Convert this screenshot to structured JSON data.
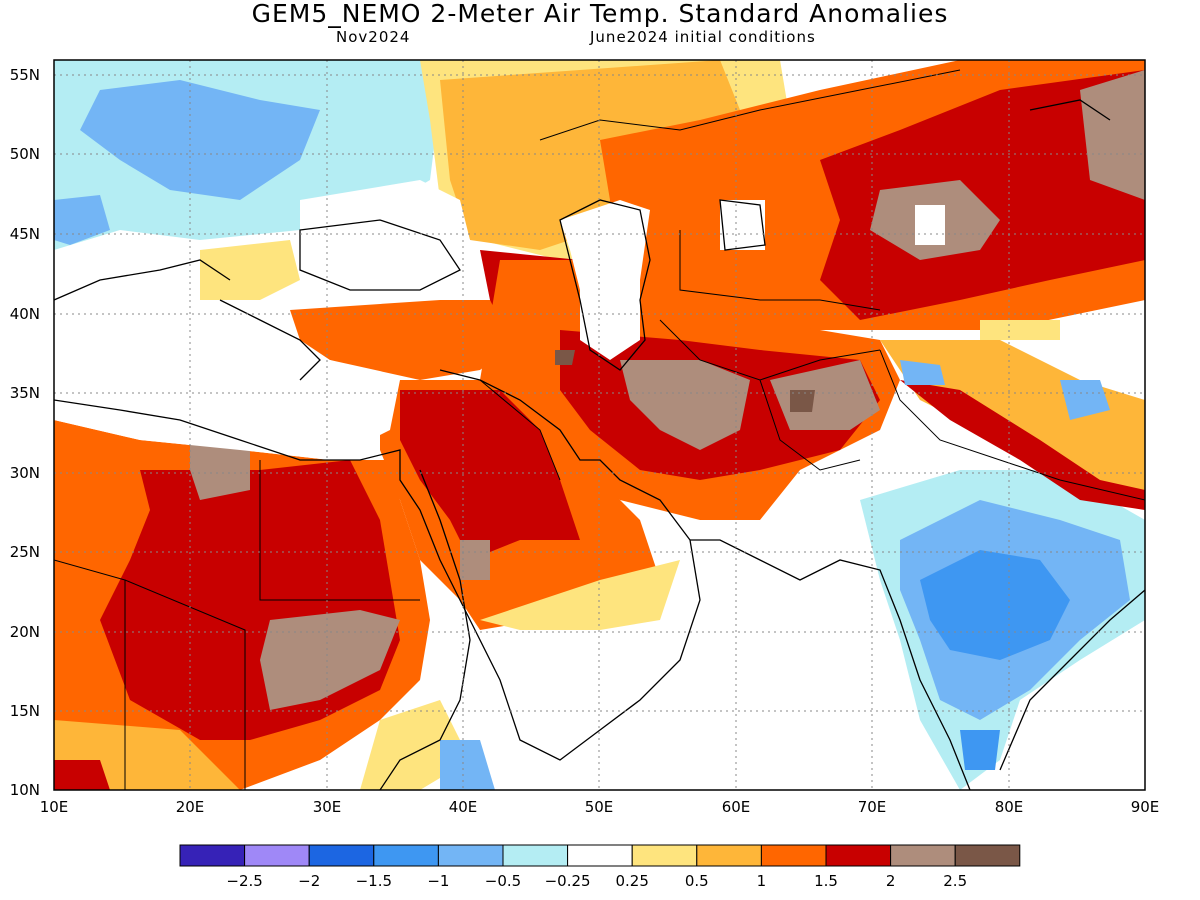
{
  "header": {
    "title": "GEM5_NEMO 2-Meter Air Temp. Standard Anomalies",
    "subtitle_left": "Nov2024",
    "subtitle_right": "June2024 initial conditions"
  },
  "map": {
    "lon_labels": [
      "10E",
      "20E",
      "30E",
      "40E",
      "50E",
      "60E",
      "70E",
      "80E",
      "90E"
    ],
    "lat_labels": [
      "55N",
      "50N",
      "45N",
      "40N",
      "35N",
      "30N",
      "25N",
      "20N",
      "15N",
      "10N"
    ],
    "extent": {
      "lon": [
        10,
        90
      ],
      "lat": [
        10,
        56
      ]
    },
    "regions": [
      {
        "name": "north-africa-west",
        "level": "1 to 1.5",
        "color": "#ff6600"
      },
      {
        "name": "sahara-core",
        "level": "1.5 to 2",
        "color": "#c80000"
      },
      {
        "name": "sudan-peak",
        "level": "2 to 2.5",
        "color": "#ae8d7c"
      },
      {
        "name": "arabia-north",
        "level": "1.5 to 2",
        "color": "#c80000"
      },
      {
        "name": "iran-plateau",
        "level": "2 to 2.5",
        "color": "#ae8d7c"
      },
      {
        "name": "central-asia",
        "level": "1 to 1.5",
        "color": "#ff6600"
      },
      {
        "name": "india-cold",
        "level": "-1.5 to -1",
        "color": "#3e97f2"
      },
      {
        "name": "europe-cold",
        "level": "-1 to -0.5",
        "color": "#73b5f5"
      }
    ]
  },
  "colorbar": {
    "colors": [
      "#3622b7",
      "#9f88f7",
      "#1c66e2",
      "#3e97f2",
      "#73b5f5",
      "#b4edf3",
      "#ffffff",
      "#fee47e",
      "#feb639",
      "#ff6600",
      "#c80000",
      "#ae8d7c",
      "#7a5747"
    ],
    "labels": [
      "-2.5",
      "-2",
      "-1.5",
      "-1",
      "-0.5",
      "-0.25",
      "0.25",
      "0.5",
      "1",
      "1.5",
      "2",
      "2.5"
    ]
  }
}
